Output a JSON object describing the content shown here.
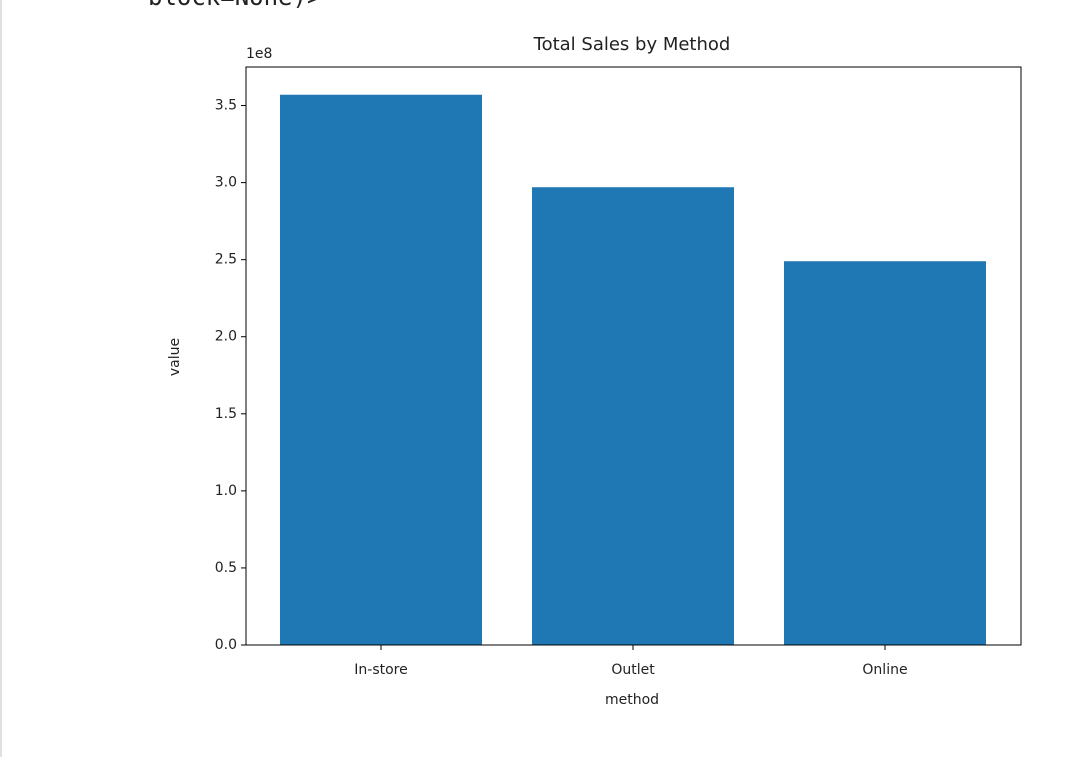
{
  "cell_output": {
    "text": "block=None)>"
  },
  "chart_data": {
    "type": "bar",
    "title": "Total Sales by Method",
    "x_label": "method",
    "y_label": "value",
    "y_offset_label": "1e8",
    "categories": [
      "In-store",
      "Outlet",
      "Online"
    ],
    "values": [
      3.57,
      2.97,
      2.49
    ],
    "color": "#1f77b4",
    "ylim": [
      0,
      3.75
    ],
    "yticks": [
      {
        "value": 0,
        "label": "0.0"
      },
      0.5,
      {
        "value": 1,
        "label": "1.0"
      },
      1.5,
      {
        "value": 2,
        "label": "2.0"
      },
      2.5,
      {
        "value": 3,
        "label": "3.0"
      },
      3.5
    ],
    "grid": false
  }
}
